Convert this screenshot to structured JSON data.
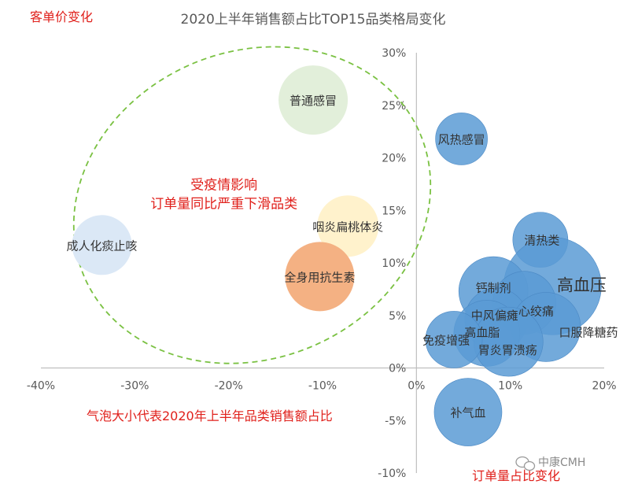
{
  "chart_data": {
    "type": "bubble",
    "title": "2020上半年销售额占比TOP15品类格局变化",
    "xlabel": "订单量占比变化",
    "ylabel": "客单价变化",
    "xlim": [
      -40,
      20
    ],
    "ylim": [
      -10,
      30
    ],
    "x_ticks": [
      "-40%",
      "-30%",
      "-20%",
      "-10%",
      "0%",
      "10%",
      "20%"
    ],
    "y_ticks": [
      "30%",
      "25%",
      "20%",
      "15%",
      "10%",
      "5%",
      "0%",
      "-5%",
      "-10%"
    ],
    "bubble_size_note": "气泡大小代表2020年上半年品类销售额占比",
    "annotation": [
      "受疫情影响",
      "订单量同比严重下滑品类"
    ],
    "points": [
      {
        "label": "普通感冒",
        "x": -11,
        "y": 25.5,
        "size": 44,
        "color": "#e2efda"
      },
      {
        "label": "风热感冒",
        "x": 4.8,
        "y": 21.8,
        "size": 33,
        "color": "#5b9bd5"
      },
      {
        "label": "成人化痰止咳",
        "x": -33.5,
        "y": 11.7,
        "size": 38,
        "color": "#dbe8f6"
      },
      {
        "label": "咽炎扁桃体炎",
        "x": -7.3,
        "y": 13.5,
        "size": 39,
        "color": "#fff2cc"
      },
      {
        "label": "全身用抗生素",
        "x": -10.3,
        "y": 8.7,
        "size": 44,
        "color": "#f4b183"
      },
      {
        "label": "清热类",
        "x": 13.2,
        "y": 12.2,
        "size": 35,
        "color": "#5b9bd5"
      },
      {
        "label": "高血压",
        "x": 14.5,
        "y": 7.8,
        "size": 62,
        "color": "#5b9bd5"
      },
      {
        "label": "钙制剂",
        "x": 8.2,
        "y": 7.3,
        "size": 44,
        "color": "#5b9bd5"
      },
      {
        "label": "心绞痛",
        "x": 11.5,
        "y": 6.2,
        "size": 40,
        "color": "#5b9bd5"
      },
      {
        "label": "中风偏瘫",
        "x": 8.5,
        "y": 4.6,
        "size": 40,
        "color": "#5b9bd5"
      },
      {
        "label": "口服降糖药",
        "x": 13.8,
        "y": 3.9,
        "size": 44,
        "color": "#5b9bd5"
      },
      {
        "label": "高血脂",
        "x": 7.5,
        "y": 3.3,
        "size": 42,
        "color": "#5b9bd5"
      },
      {
        "label": "胃炎胃溃疡",
        "x": 9.8,
        "y": 2.5,
        "size": 44,
        "color": "#5b9bd5"
      },
      {
        "label": "免疫增强",
        "x": 4.0,
        "y": 2.7,
        "size": 36,
        "color": "#5b9bd5"
      },
      {
        "label": "补气血",
        "x": 5.5,
        "y": -4.2,
        "size": 43,
        "color": "#5b9bd5"
      }
    ]
  },
  "watermark": "中康CMH"
}
